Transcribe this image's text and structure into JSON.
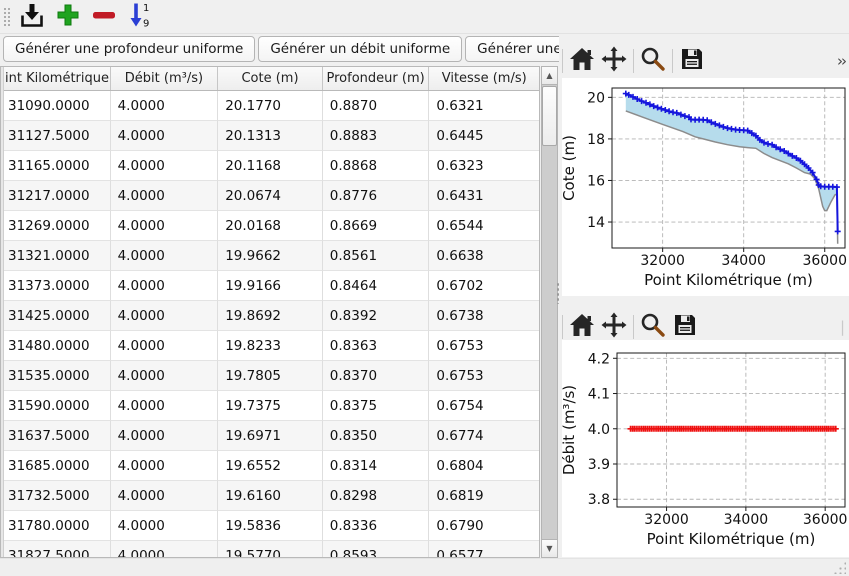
{
  "main_toolbar": {
    "icons": [
      {
        "name": "import-data",
        "color": "#111111"
      },
      {
        "name": "add-row",
        "color": "#1fa31f"
      },
      {
        "name": "remove-row",
        "color": "#c11b26"
      },
      {
        "name": "sort-rows",
        "color": "#2b3fd4",
        "top_digit": "1",
        "bottom_digit": "9"
      }
    ]
  },
  "buttons": [
    "Générer une profondeur uniforme",
    "Générer un débit uniforme",
    "Générer une cote uniforme"
  ],
  "table": {
    "columns": [
      "int Kilométrique (",
      "Débit (m³/s)",
      "Cote (m)",
      "Profondeur (m)",
      "Vitesse (m/s)"
    ],
    "rows": [
      [
        "31090.0000",
        "4.0000",
        "20.1770",
        "0.8870",
        "0.6321"
      ],
      [
        "31127.5000",
        "4.0000",
        "20.1313",
        "0.8883",
        "0.6445"
      ],
      [
        "31165.0000",
        "4.0000",
        "20.1168",
        "0.8868",
        "0.6323"
      ],
      [
        "31217.0000",
        "4.0000",
        "20.0674",
        "0.8776",
        "0.6431"
      ],
      [
        "31269.0000",
        "4.0000",
        "20.0168",
        "0.8669",
        "0.6544"
      ],
      [
        "31321.0000",
        "4.0000",
        "19.9662",
        "0.8561",
        "0.6638"
      ],
      [
        "31373.0000",
        "4.0000",
        "19.9166",
        "0.8464",
        "0.6702"
      ],
      [
        "31425.0000",
        "4.0000",
        "19.8692",
        "0.8392",
        "0.6738"
      ],
      [
        "31480.0000",
        "4.0000",
        "19.8233",
        "0.8363",
        "0.6753"
      ],
      [
        "31535.0000",
        "4.0000",
        "19.7805",
        "0.8370",
        "0.6753"
      ],
      [
        "31590.0000",
        "4.0000",
        "19.7375",
        "0.8375",
        "0.6754"
      ],
      [
        "31637.5000",
        "4.0000",
        "19.6971",
        "0.8350",
        "0.6774"
      ],
      [
        "31685.0000",
        "4.0000",
        "19.6552",
        "0.8314",
        "0.6804"
      ],
      [
        "31732.5000",
        "4.0000",
        "19.6160",
        "0.8298",
        "0.6819"
      ],
      [
        "31780.0000",
        "4.0000",
        "19.5836",
        "0.8336",
        "0.6790"
      ],
      [
        "31827.5000",
        "4.0000",
        "19.5770",
        "0.8593",
        "0.6577"
      ]
    ]
  },
  "scrollbar": {
    "up_glyph": "▲",
    "down_glyph": "▼"
  },
  "plot_toolbar": {
    "icons": [
      "home",
      "pan",
      "zoom",
      "save"
    ],
    "more_label": "››"
  },
  "chart_data": [
    {
      "type": "line",
      "xlabel": "Point Kilométrique (m)",
      "ylabel": "Cote (m)",
      "xlim": [
        30750,
        36500
      ],
      "ylim": [
        12.75,
        20.45
      ],
      "xticks": [
        32000,
        34000,
        36000
      ],
      "xtick_labels": [
        "32000",
        "34000",
        "36000"
      ],
      "yticks": [
        14,
        16,
        18,
        20
      ],
      "ytick_labels": [
        "14",
        "16",
        "18",
        "20"
      ],
      "grid": true,
      "fill_between": {
        "upper": "cote",
        "lower": "fond",
        "color": "#b6dcec"
      },
      "series": [
        {
          "name": "cote",
          "color": "#1515dd",
          "marker": "+",
          "line_width": 2,
          "points": [
            [
              31090,
              20.18
            ],
            [
              31165,
              20.12
            ],
            [
              31269,
              20.02
            ],
            [
              31373,
              19.92
            ],
            [
              31480,
              19.82
            ],
            [
              31590,
              19.74
            ],
            [
              31685,
              19.66
            ],
            [
              31780,
              19.58
            ],
            [
              31875,
              19.51
            ],
            [
              31970,
              19.45
            ],
            [
              32065,
              19.39
            ],
            [
              32160,
              19.33
            ],
            [
              32255,
              19.28
            ],
            [
              32350,
              19.25
            ],
            [
              32450,
              19.17
            ],
            [
              32550,
              19.1
            ],
            [
              32650,
              19.05
            ],
            [
              32700,
              18.94
            ],
            [
              32800,
              18.92
            ],
            [
              32900,
              18.93
            ],
            [
              33000,
              18.92
            ],
            [
              33100,
              18.9
            ],
            [
              33200,
              18.8
            ],
            [
              33300,
              18.72
            ],
            [
              33400,
              18.65
            ],
            [
              33500,
              18.58
            ],
            [
              33600,
              18.52
            ],
            [
              33700,
              18.48
            ],
            [
              33800,
              18.45
            ],
            [
              33900,
              18.43
            ],
            [
              34000,
              18.42
            ],
            [
              34100,
              18.4
            ],
            [
              34200,
              18.28
            ],
            [
              34300,
              18.15
            ],
            [
              34400,
              17.95
            ],
            [
              34500,
              17.82
            ],
            [
              34600,
              17.76
            ],
            [
              34700,
              17.72
            ],
            [
              34800,
              17.6
            ],
            [
              34900,
              17.5
            ],
            [
              35000,
              17.42
            ],
            [
              35100,
              17.3
            ],
            [
              35200,
              17.18
            ],
            [
              35300,
              17.08
            ],
            [
              35400,
              16.95
            ],
            [
              35500,
              16.78
            ],
            [
              35600,
              16.6
            ],
            [
              35700,
              16.38
            ],
            [
              35800,
              16.05
            ],
            [
              35850,
              15.78
            ],
            [
              35900,
              15.72
            ],
            [
              36000,
              15.7
            ],
            [
              36100,
              15.7
            ],
            [
              36200,
              15.7
            ],
            [
              36300,
              15.68
            ],
            [
              36320,
              13.55
            ]
          ]
        },
        {
          "name": "fond",
          "color": "#8c8c8c",
          "line_width": 1.5,
          "points": [
            [
              31090,
              19.35
            ],
            [
              31500,
              19.05
            ],
            [
              32000,
              18.7
            ],
            [
              32500,
              18.35
            ],
            [
              32800,
              18.1
            ],
            [
              33000,
              18.0
            ],
            [
              33300,
              17.85
            ],
            [
              33600,
              17.72
            ],
            [
              33900,
              17.62
            ],
            [
              34100,
              17.58
            ],
            [
              34300,
              17.55
            ],
            [
              34500,
              17.3
            ],
            [
              34700,
              17.1
            ],
            [
              34900,
              16.95
            ],
            [
              35100,
              16.8
            ],
            [
              35300,
              16.6
            ],
            [
              35500,
              16.38
            ],
            [
              35650,
              16.3
            ],
            [
              35750,
              16.1
            ],
            [
              35850,
              15.6
            ],
            [
              35950,
              14.75
            ],
            [
              36000,
              14.55
            ],
            [
              36050,
              14.55
            ],
            [
              36150,
              14.95
            ],
            [
              36250,
              15.3
            ],
            [
              36300,
              15.35
            ],
            [
              36320,
              12.95
            ]
          ]
        }
      ]
    },
    {
      "type": "scatter",
      "xlabel": "Point Kilométrique (m)",
      "ylabel": "Débit (m³/s)",
      "xlim": [
        30750,
        36500
      ],
      "ylim": [
        3.778,
        4.215
      ],
      "xticks": [
        32000,
        34000,
        36000
      ],
      "xtick_labels": [
        "32000",
        "34000",
        "36000"
      ],
      "yticks": [
        3.8,
        3.9,
        4.0,
        4.1,
        4.2
      ],
      "ytick_labels": [
        "3.8",
        "3.9",
        "4.0",
        "4.1",
        "4.2"
      ],
      "grid": true,
      "series": [
        {
          "name": "debit",
          "color": "#ee0e0e",
          "marker": "+",
          "line_width": 1.5,
          "x_range": [
            31090,
            36280
          ],
          "x_step": 47.5,
          "value": 4.0
        }
      ]
    }
  ],
  "status_bar": {
    "text": ""
  }
}
